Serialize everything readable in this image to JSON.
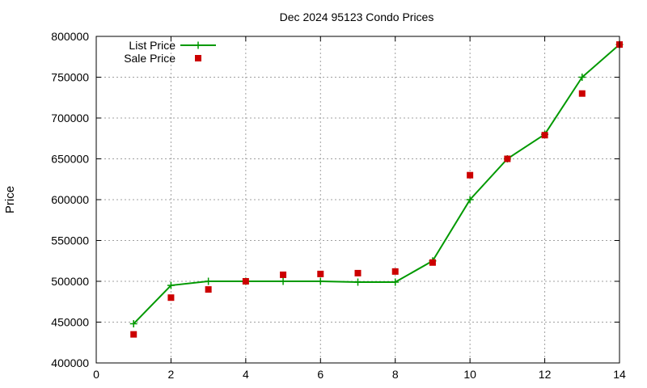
{
  "chart_data": {
    "type": "line",
    "title": "Dec 2024 95123 Condo Prices",
    "xlabel": "",
    "ylabel": "Price",
    "xlim": [
      0,
      14
    ],
    "ylim": [
      400000,
      800000
    ],
    "xticks": [
      0,
      2,
      4,
      6,
      8,
      10,
      12,
      14
    ],
    "yticks": [
      400000,
      450000,
      500000,
      550000,
      600000,
      650000,
      700000,
      750000,
      800000
    ],
    "grid": true,
    "legend": "top-left",
    "series": [
      {
        "name": "List Price",
        "style": "line-plus",
        "color": "#009900",
        "x": [
          1,
          2,
          3,
          4,
          5,
          6,
          7,
          8,
          9,
          10,
          11,
          12,
          13,
          14
        ],
        "y": [
          448000,
          495000,
          500000,
          500000,
          500000,
          500000,
          499000,
          499000,
          525000,
          600000,
          650000,
          680000,
          750000,
          790000
        ]
      },
      {
        "name": "Sale Price",
        "style": "square-marker",
        "color": "#cc0000",
        "x": [
          1,
          2,
          3,
          4,
          5,
          6,
          7,
          8,
          9,
          10,
          11,
          12,
          13,
          14
        ],
        "y": [
          435000,
          480000,
          490000,
          500000,
          508000,
          509000,
          510000,
          512000,
          523000,
          630000,
          650000,
          679000,
          730000,
          790000
        ]
      }
    ]
  }
}
